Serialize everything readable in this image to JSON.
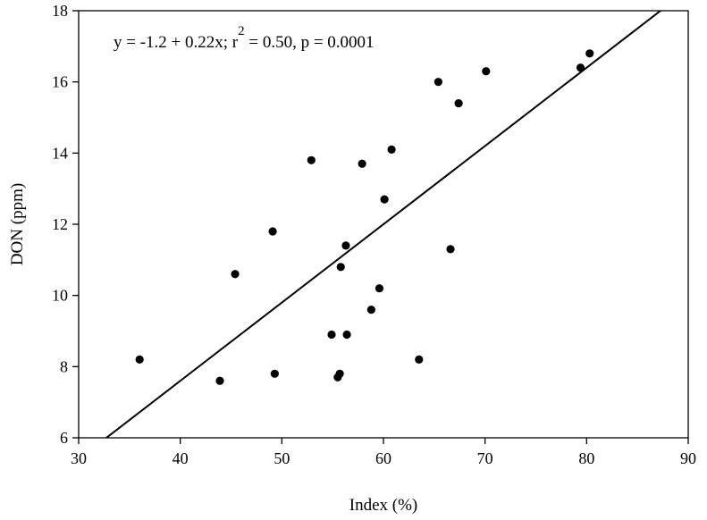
{
  "chart_data": {
    "type": "scatter",
    "title": "",
    "xlabel": "Index (%)",
    "ylabel": "DON (ppm)",
    "xlim": [
      30,
      90
    ],
    "ylim": [
      6,
      18
    ],
    "x_ticks": [
      30,
      40,
      50,
      60,
      70,
      80,
      90
    ],
    "y_ticks": [
      6,
      8,
      10,
      12,
      14,
      16,
      18
    ],
    "grid": false,
    "legend": "none",
    "annotation": {
      "text_before": "y = -1.2 + 0.22x; r",
      "superscript": "2",
      "text_after": " = 0.50, p = 0.0001"
    },
    "regression": {
      "intercept": -1.2,
      "slope": 0.22
    },
    "marker_color": "#000000",
    "line_color": "#000000",
    "points": [
      {
        "x": 36.0,
        "y": 8.2
      },
      {
        "x": 43.9,
        "y": 7.6
      },
      {
        "x": 45.4,
        "y": 10.6
      },
      {
        "x": 49.1,
        "y": 11.8
      },
      {
        "x": 49.3,
        "y": 7.8
      },
      {
        "x": 52.9,
        "y": 13.8
      },
      {
        "x": 54.9,
        "y": 8.9
      },
      {
        "x": 55.5,
        "y": 7.7
      },
      {
        "x": 55.7,
        "y": 7.8
      },
      {
        "x": 55.8,
        "y": 10.8
      },
      {
        "x": 56.3,
        "y": 11.4
      },
      {
        "x": 56.4,
        "y": 8.9
      },
      {
        "x": 57.9,
        "y": 13.7
      },
      {
        "x": 58.8,
        "y": 9.6
      },
      {
        "x": 59.6,
        "y": 10.2
      },
      {
        "x": 60.1,
        "y": 12.7
      },
      {
        "x": 60.8,
        "y": 14.1
      },
      {
        "x": 63.5,
        "y": 8.2
      },
      {
        "x": 65.4,
        "y": 16.0
      },
      {
        "x": 66.6,
        "y": 11.3
      },
      {
        "x": 67.4,
        "y": 15.4
      },
      {
        "x": 70.1,
        "y": 16.3
      },
      {
        "x": 79.4,
        "y": 16.4
      },
      {
        "x": 80.3,
        "y": 16.8
      }
    ]
  }
}
